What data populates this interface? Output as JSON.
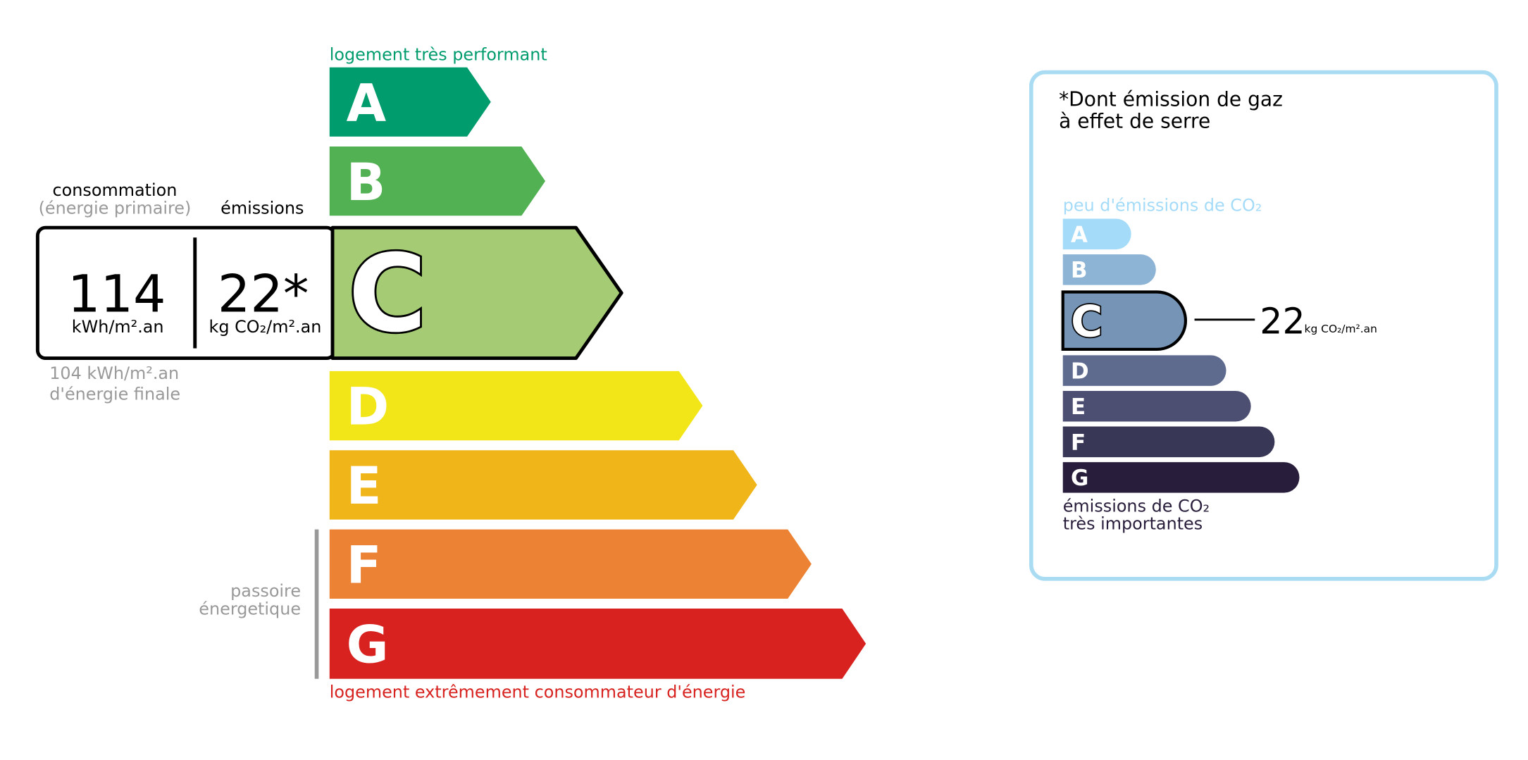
{
  "energy": {
    "top_label": "logement très performant",
    "bottom_label": "logement extrêmement consommateur d'énergie",
    "classes": [
      "A",
      "B",
      "C",
      "D",
      "E",
      "F",
      "G"
    ],
    "consumption_label": "consommation",
    "consumption_sub": "(énergie primaire)",
    "emissions_label": "émissions",
    "consumption_value": "114",
    "consumption_unit": "kWh/m².an",
    "emissions_value": "22*",
    "emissions_unit": "kg CO₂/m².an",
    "final_line1": "104 kWh/m².an",
    "final_line2": "d'énergie finale",
    "passoire_line1": "passoire",
    "passoire_line2": "énergetique"
  },
  "ges": {
    "title_line1": "*Dont émission de gaz",
    "title_line2": "à effet de serre",
    "top_label": "peu d'émissions de CO₂",
    "classes": [
      "A",
      "B",
      "C",
      "D",
      "E",
      "F",
      "G"
    ],
    "value": "22",
    "unit": "kg CO₂/m².an",
    "bottom_line1": "émissions de CO₂",
    "bottom_line2": "très importantes"
  }
}
